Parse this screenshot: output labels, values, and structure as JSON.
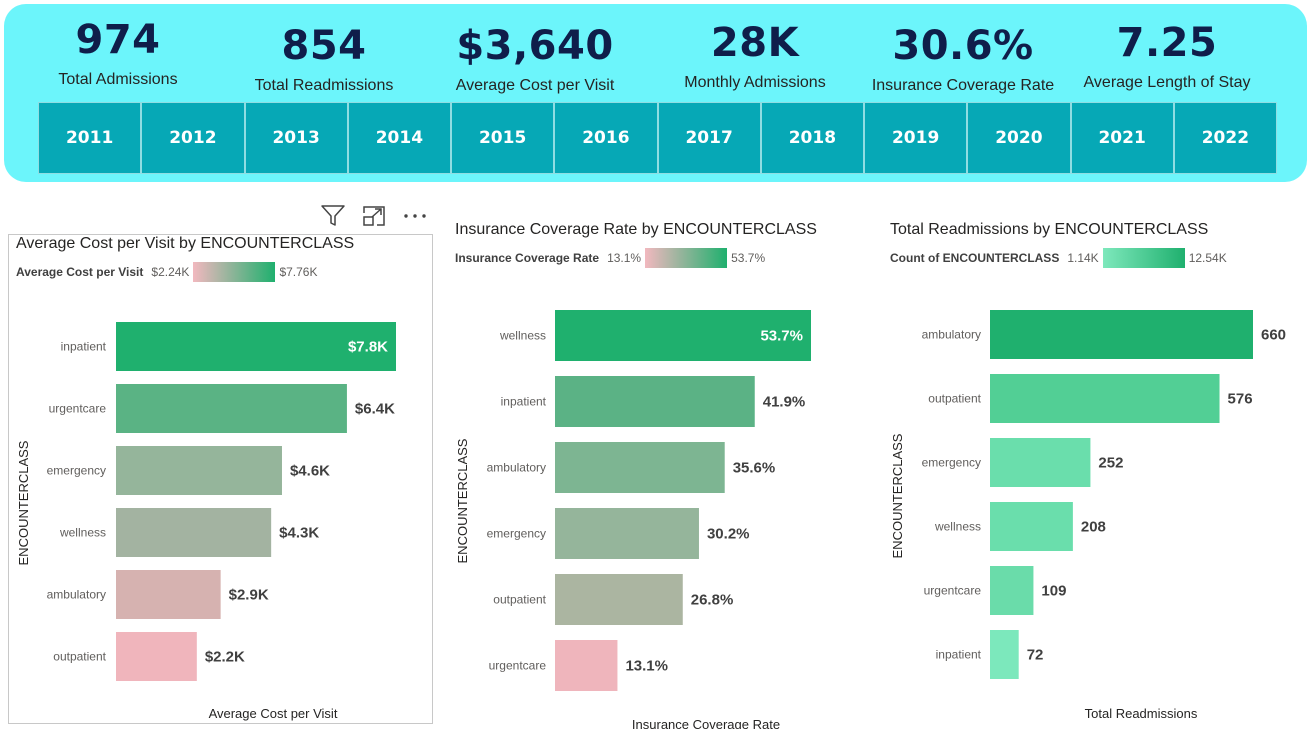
{
  "kpis": [
    {
      "value": "974",
      "label": "Total Admissions"
    },
    {
      "value": "854",
      "label": "Total Readmissions"
    },
    {
      "value": "$3,640",
      "label": "Average Cost per Visit"
    },
    {
      "value": "28K",
      "label": "Monthly Admissions"
    },
    {
      "value": "30.6%",
      "label": "Insurance Coverage Rate"
    },
    {
      "value": "7.25",
      "label": "Average Length of Stay"
    }
  ],
  "years": [
    "2011",
    "2012",
    "2013",
    "2014",
    "2015",
    "2016",
    "2017",
    "2018",
    "2019",
    "2020",
    "2021",
    "2022"
  ],
  "visual_header_icons": [
    "filter-icon",
    "focus-mode-icon",
    "more-options-icon"
  ],
  "chart_data": [
    {
      "type": "bar",
      "orientation": "horizontal",
      "title": "Average Cost per Visit by ENCOUNTERCLASS",
      "xlabel": "Average Cost per Visit",
      "ylabel": "ENCOUNTERCLASS",
      "legend": {
        "name": "Average Cost per Visit",
        "min": "$2.24K",
        "max": "$7.76K",
        "colors": [
          "#f2b8bf",
          "#1fb06e"
        ]
      },
      "categories": [
        "inpatient",
        "urgentcare",
        "emergency",
        "wellness",
        "ambulatory",
        "outpatient"
      ],
      "values": [
        7.76,
        6.4,
        4.6,
        4.3,
        2.9,
        2.24
      ],
      "data_labels": [
        "$7.8K",
        "$6.4K",
        "$4.6K",
        "$4.3K",
        "$2.9K",
        "$2.2K"
      ],
      "colors": [
        "#1fb06e",
        "#5ab384",
        "#95b59b",
        "#a3b3a1",
        "#d6b2b0",
        "#f0b5bc"
      ],
      "xlim": [
        0,
        7.76
      ]
    },
    {
      "type": "bar",
      "orientation": "horizontal",
      "title": "Insurance Coverage Rate by ENCOUNTERCLASS",
      "xlabel": "Insurance Coverage Rate",
      "ylabel": "ENCOUNTERCLASS",
      "legend": {
        "name": "Insurance Coverage Rate",
        "min": "13.1%",
        "max": "53.7%",
        "colors": [
          "#f2b8bf",
          "#1fb06e"
        ]
      },
      "categories": [
        "wellness",
        "inpatient",
        "ambulatory",
        "emergency",
        "outpatient",
        "urgentcare"
      ],
      "values": [
        53.7,
        41.9,
        35.6,
        30.2,
        26.8,
        13.1
      ],
      "data_labels": [
        "53.7%",
        "41.9%",
        "35.6%",
        "30.2%",
        "26.8%",
        "13.1%"
      ],
      "colors": [
        "#1fb06e",
        "#5bb285",
        "#7db592",
        "#95b59b",
        "#abb5a1",
        "#efb5bc"
      ],
      "xlim": [
        0,
        53.7
      ]
    },
    {
      "type": "bar",
      "orientation": "horizontal",
      "title": "Total Readmissions by ENCOUNTERCLASS",
      "xlabel": "Total Readmissions",
      "ylabel": "ENCOUNTERCLASS",
      "legend": {
        "name": "Count of ENCOUNTERCLASS",
        "min": "1.14K",
        "max": "12.54K",
        "colors": [
          "#7ee8bc",
          "#1fb06e"
        ]
      },
      "categories": [
        "ambulatory",
        "outpatient",
        "emergency",
        "wellness",
        "urgentcare",
        "inpatient"
      ],
      "values": [
        660,
        576,
        252,
        208,
        109,
        72
      ],
      "data_labels": [
        "660",
        "576",
        "252",
        "208",
        "109",
        "72"
      ],
      "colors": [
        "#1fb06e",
        "#52cf95",
        "#6adeac",
        "#6adeac",
        "#6adcaa",
        "#7ce8bc"
      ],
      "xlim": [
        0,
        660
      ]
    }
  ]
}
